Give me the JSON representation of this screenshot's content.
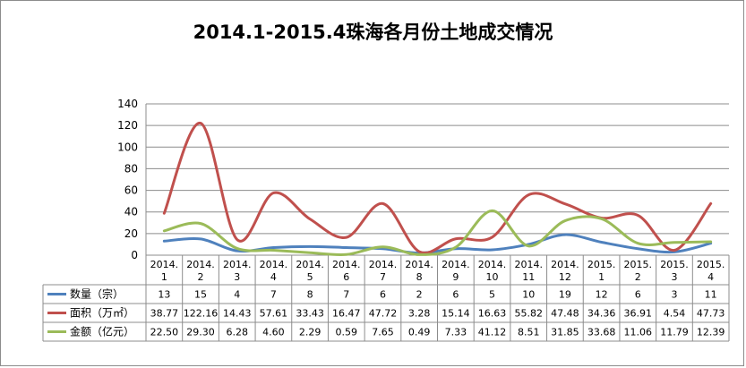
{
  "chart_data": {
    "type": "line",
    "title": "2014.1-2015.4珠海各月份土地成交情况",
    "categories": [
      [
        "2014.",
        "1"
      ],
      [
        "2014.",
        "2"
      ],
      [
        "2014.",
        "3"
      ],
      [
        "2014.",
        "4"
      ],
      [
        "2014.",
        "5"
      ],
      [
        "2014.",
        "6"
      ],
      [
        "2014.",
        "7"
      ],
      [
        "2014.",
        "8"
      ],
      [
        "2014.",
        "9"
      ],
      [
        "2014.",
        "10"
      ],
      [
        "2014.",
        "11"
      ],
      [
        "2014.",
        "12"
      ],
      [
        "2015.",
        "1"
      ],
      [
        "2015.",
        "2"
      ],
      [
        "2015.",
        "3"
      ],
      [
        "2015.",
        "4"
      ]
    ],
    "ylim": [
      0,
      140
    ],
    "yticks": [
      0,
      20,
      40,
      60,
      80,
      100,
      120,
      140
    ],
    "grid": true,
    "data_table": true,
    "series": [
      {
        "name": "数量（宗）",
        "color": "#4f81bd",
        "values": [
          13,
          15,
          4,
          7,
          8,
          7,
          6,
          2,
          6,
          5,
          10,
          19,
          12,
          6,
          3,
          11
        ],
        "labels": [
          "13",
          "15",
          "4",
          "7",
          "8",
          "7",
          "6",
          "2",
          "6",
          "5",
          "10",
          "19",
          "12",
          "6",
          "3",
          "11"
        ]
      },
      {
        "name": "面积（万㎡）",
        "color": "#c0504d",
        "values": [
          38.77,
          122.16,
          14.43,
          57.61,
          33.43,
          16.47,
          47.72,
          3.28,
          15.14,
          16.63,
          55.82,
          47.48,
          34.36,
          36.91,
          4.54,
          47.73
        ],
        "labels": [
          "38.77",
          "122.16",
          "14.43",
          "57.61",
          "33.43",
          "16.47",
          "47.72",
          "3.28",
          "15.14",
          "16.63",
          "55.82",
          "47.48",
          "34.36",
          "36.91",
          "4.54",
          "47.73"
        ]
      },
      {
        "name": "金额（亿元）",
        "color": "#9bbb59",
        "values": [
          22.5,
          29.3,
          6.28,
          4.6,
          2.29,
          0.59,
          7.65,
          0.49,
          7.33,
          41.12,
          8.51,
          31.85,
          33.68,
          11.06,
          11.79,
          12.39
        ],
        "labels": [
          "22.50",
          "29.30",
          "6.28",
          "4.60",
          "2.29",
          "0.59",
          "7.65",
          "0.49",
          "7.33",
          "41.12",
          "8.51",
          "31.85",
          "33.68",
          "11.06",
          "11.79",
          "12.39"
        ]
      }
    ]
  }
}
